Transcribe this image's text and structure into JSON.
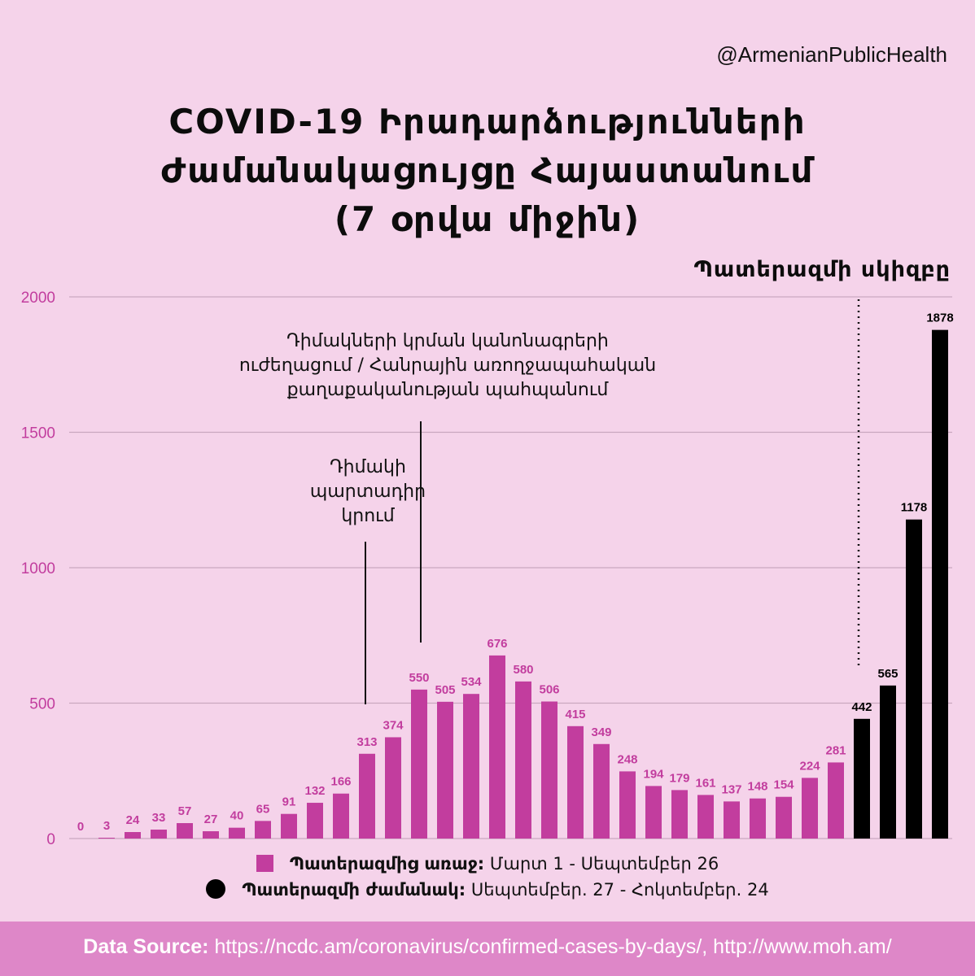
{
  "handle": "@ArmenianPublicHealth",
  "title_lines": [
    "COVID-19 Իրադարձությունների",
    "Ժամանակացույցը Հայաստանում",
    "(7 օրվա միջին)"
  ],
  "war_start_label": "Պատերազմի սկիզբը",
  "annotation_mask_mandate": [
    "Դիմակի",
    "պարտադիր",
    "կրում"
  ],
  "annotation_mask_relaxation": [
    "Դիմակների կրման կանոնագրերի",
    "ուժեղացում / Հանրային առողջապահական",
    "քաղաքականության պահպանում"
  ],
  "legend": {
    "prewar_label": "Պատերազմից առաջ:",
    "prewar_range": "Մարտ 1 - Սեպտեմբեր 26",
    "war_label": "Պատերազմի ժամանակ:",
    "war_range": "Սեպտեմբեր. 27 - Հոկտեմբեր. 24"
  },
  "footer": {
    "source_label": "Data Source:",
    "source_urls": "https://ncdc.am/coronavirus/confirmed-cases-by-days/, http://www.moh.am/"
  },
  "colors": {
    "prewar": "#c23d9e",
    "war": "#000000",
    "background": "#f5d3ea",
    "axis_label": "#c23d9e"
  },
  "chart_data": {
    "type": "bar",
    "ylim": [
      0,
      2000
    ],
    "yticks": [
      0,
      500,
      1000,
      1500,
      2000
    ],
    "grid": true,
    "series": [
      {
        "name": "Պատերազմից առաջ",
        "values": [
          0,
          3,
          24,
          33,
          57,
          27,
          40,
          65,
          91,
          132,
          166,
          313,
          374,
          550,
          505,
          534,
          676,
          580,
          506,
          415,
          349,
          248,
          194,
          179,
          161,
          137,
          148,
          154,
          224,
          281
        ]
      },
      {
        "name": "Պատերազմի ժամանակ",
        "values": [
          442,
          565,
          1178,
          1878
        ]
      }
    ]
  }
}
